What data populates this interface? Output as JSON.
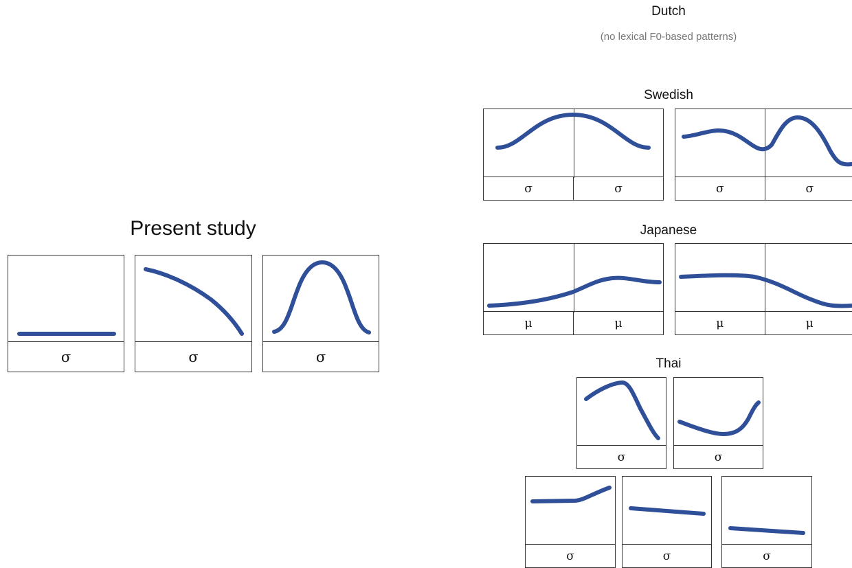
{
  "contour_color": "#2f4f99",
  "dutch": {
    "title": "Dutch",
    "note": "(no lexical F0-based patterns)"
  },
  "swedish": {
    "title": "Swedish",
    "panels": [
      {
        "units": [
          "σ",
          "σ"
        ]
      },
      {
        "units": [
          "σ",
          "σ"
        ]
      }
    ]
  },
  "japanese": {
    "title": "Japanese",
    "panels": [
      {
        "units": [
          "μ",
          "μ"
        ]
      },
      {
        "units": [
          "μ",
          "μ"
        ]
      }
    ]
  },
  "thai": {
    "title": "Thai",
    "panels": [
      {
        "units": [
          "σ"
        ]
      },
      {
        "units": [
          "σ"
        ]
      },
      {
        "units": [
          "σ"
        ]
      },
      {
        "units": [
          "σ"
        ]
      },
      {
        "units": [
          "σ"
        ]
      }
    ]
  },
  "present_study": {
    "title": "Present study",
    "panels": [
      {
        "units": [
          "σ"
        ]
      },
      {
        "units": [
          "σ"
        ]
      },
      {
        "units": [
          "σ"
        ]
      }
    ]
  }
}
